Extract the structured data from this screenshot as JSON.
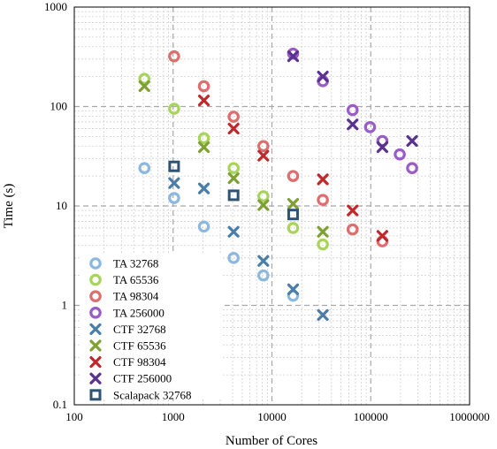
{
  "chart_data": {
    "type": "scatter",
    "title": "",
    "xlabel": "Number of Cores",
    "ylabel": "Time (s)",
    "x_scale": "log",
    "y_scale": "log",
    "xlim": [
      100,
      1000000
    ],
    "ylim": [
      0.1,
      1000
    ],
    "x_tick_labels": [
      "100",
      "1000",
      "10000",
      "100000",
      "1000000"
    ],
    "y_tick_labels": [
      "0.1",
      "1",
      "10",
      "100",
      "1000"
    ],
    "grid": true,
    "legend_position": "bottom-left",
    "series": [
      {
        "name": "TA 32768",
        "marker": "circle",
        "color": "#8cb8e0",
        "points": [
          [
            512,
            24
          ],
          [
            1024,
            12
          ],
          [
            2048,
            6.2
          ],
          [
            4096,
            3.0
          ],
          [
            8192,
            2.0
          ],
          [
            16384,
            1.25
          ]
        ]
      },
      {
        "name": "TA 65536",
        "marker": "circle",
        "color": "#a8d45c",
        "points": [
          [
            512,
            190
          ],
          [
            1024,
            95
          ],
          [
            2048,
            48
          ],
          [
            4096,
            24
          ],
          [
            8192,
            12.5
          ],
          [
            16384,
            6.0
          ],
          [
            32768,
            4.1
          ]
        ]
      },
      {
        "name": "TA 98304",
        "marker": "circle",
        "color": "#de6e6e",
        "points": [
          [
            1024,
            320
          ],
          [
            2048,
            160
          ],
          [
            4096,
            79
          ],
          [
            8192,
            40
          ],
          [
            16384,
            20
          ],
          [
            32768,
            11.5
          ],
          [
            65536,
            5.8
          ],
          [
            131072,
            4.4
          ]
        ]
      },
      {
        "name": "TA 256000",
        "marker": "circle",
        "color": "#9a5cc6",
        "points": [
          [
            16384,
            340
          ],
          [
            32768,
            180
          ],
          [
            65536,
            92
          ],
          [
            98304,
            62
          ],
          [
            131072,
            45
          ],
          [
            196608,
            33
          ],
          [
            262144,
            24
          ]
        ]
      },
      {
        "name": "CTF 32768",
        "marker": "x",
        "color": "#4a7ea6",
        "points": [
          [
            1024,
            17
          ],
          [
            2048,
            15
          ],
          [
            4096,
            5.5
          ],
          [
            8192,
            2.8
          ],
          [
            16384,
            1.45
          ],
          [
            32768,
            0.8
          ]
        ]
      },
      {
        "name": "CTF 65536",
        "marker": "x",
        "color": "#7fa032",
        "points": [
          [
            512,
            160
          ],
          [
            2048,
            39
          ],
          [
            4096,
            19
          ],
          [
            8192,
            10.2
          ],
          [
            16384,
            10.5
          ],
          [
            32768,
            5.5
          ]
        ]
      },
      {
        "name": "CTF 98304",
        "marker": "x",
        "color": "#c0282c",
        "points": [
          [
            2048,
            115
          ],
          [
            4096,
            60
          ],
          [
            8192,
            32
          ],
          [
            32768,
            18.5
          ],
          [
            65536,
            9.0
          ],
          [
            131072,
            5.0
          ]
        ]
      },
      {
        "name": "CTF 256000",
        "marker": "x",
        "color": "#5a3290",
        "points": [
          [
            16384,
            320
          ],
          [
            32768,
            200
          ],
          [
            65536,
            66
          ],
          [
            131072,
            39
          ],
          [
            262144,
            45
          ]
        ]
      },
      {
        "name": "Scalapack 32768",
        "marker": "square",
        "color": "#2f5473",
        "points": [
          [
            1024,
            25
          ],
          [
            4096,
            12.8
          ],
          [
            16384,
            8.2
          ]
        ]
      }
    ]
  }
}
